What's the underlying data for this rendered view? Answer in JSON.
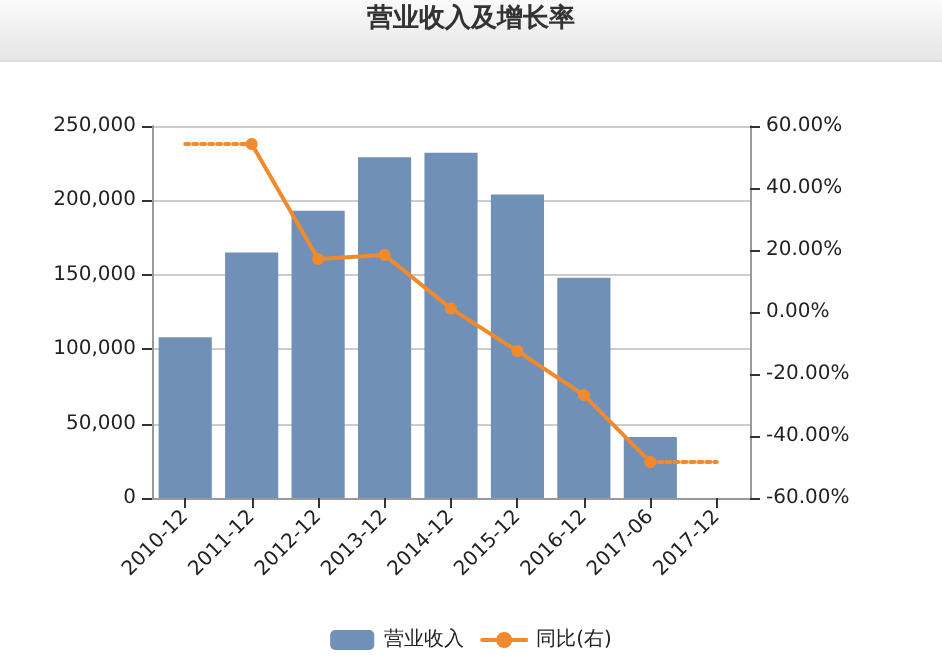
{
  "chart_data": {
    "type": "bar",
    "title": "营业收入及增长率",
    "categories": [
      "2010-12",
      "2011-12",
      "2012-12",
      "2013-12",
      "2014-12",
      "2015-12",
      "2016-12",
      "2017-06",
      "2017-12"
    ],
    "series": [
      {
        "name": "营业收入",
        "color": "#7190b7",
        "values": [
          108000,
          165000,
          193000,
          229000,
          232000,
          204000,
          148000,
          41000,
          null
        ]
      },
      {
        "name": "同比(右)",
        "type": "line",
        "axis": "y2",
        "color": "#f08a2c",
        "marker": "circle",
        "line_style": "solid",
        "values": [
          null,
          54.2,
          17.1,
          18.4,
          1.1,
          -12.6,
          -26.8,
          -48.4,
          null
        ]
      },
      {
        "type": "line",
        "axis": "y2",
        "color": "#f08a2c",
        "line_style": "dotted",
        "values": [
          54.2,
          54.2,
          null,
          null,
          null,
          null,
          null,
          null,
          null
        ]
      },
      {
        "type": "line",
        "axis": "y2",
        "color": "#f08a2c",
        "line_style": "dotted",
        "values": [
          null,
          null,
          null,
          null,
          null,
          null,
          null,
          -48.4,
          -48.4
        ]
      }
    ],
    "ylim": [
      0,
      250000
    ],
    "yticks": [
      0,
      {
        "value": 50000,
        "label": "50,000"
      },
      {
        "value": 100000,
        "label": "100,000"
      },
      {
        "value": 150000,
        "label": "150,000"
      },
      {
        "value": 200000,
        "label": "200,000"
      },
      {
        "value": 250000,
        "label": "250,000"
      }
    ],
    "y2lim": [
      -60,
      60
    ],
    "y2ticks": [
      {
        "value": -60,
        "label": "-60.00%"
      },
      {
        "value": -40,
        "label": "-40.00%"
      },
      {
        "value": -20,
        "label": "-20.00%"
      },
      {
        "value": 0,
        "label": "0.00%"
      },
      {
        "value": 20,
        "label": "20.00%"
      },
      {
        "value": 40,
        "label": "40.00%"
      },
      {
        "value": 60,
        "label": "60.00%"
      }
    ],
    "grid": "y",
    "legend": "bottom"
  }
}
